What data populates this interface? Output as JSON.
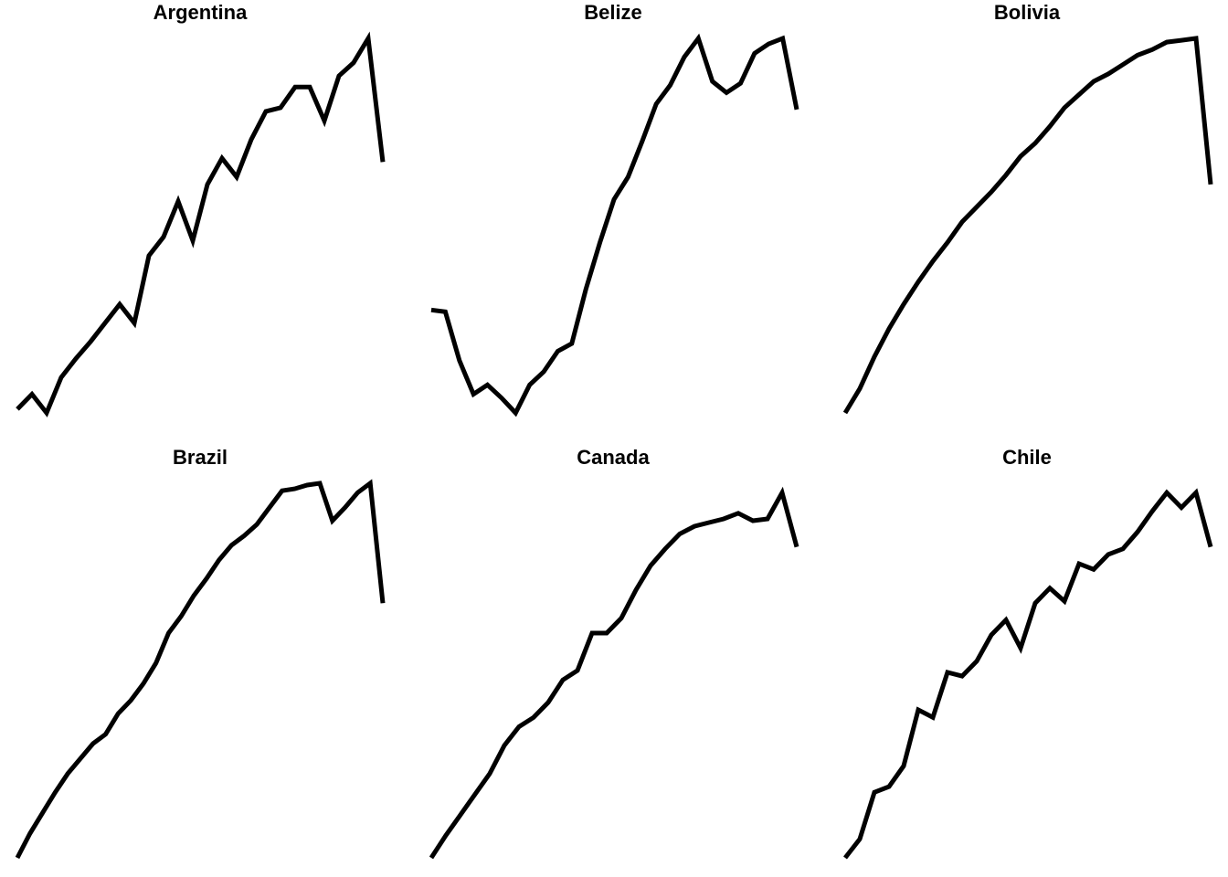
{
  "chart_data": {
    "type": "line",
    "layout": "small-multiples",
    "grid": false,
    "axes": false,
    "line_color": "#000000",
    "panels": [
      {
        "title": "Argentina",
        "values": [
          0.01,
          0.05,
          0.0,
          0.095,
          0.145,
          0.19,
          0.24,
          0.29,
          0.24,
          0.42,
          0.47,
          0.565,
          0.46,
          0.61,
          0.68,
          0.63,
          0.73,
          0.805,
          0.815,
          0.87,
          0.87,
          0.78,
          0.9,
          0.935,
          1.0,
          0.67
        ]
      },
      {
        "title": "Belize",
        "values": [
          0.275,
          0.27,
          0.14,
          0.05,
          0.075,
          0.04,
          0.0,
          0.075,
          0.11,
          0.165,
          0.185,
          0.33,
          0.455,
          0.57,
          0.63,
          0.725,
          0.825,
          0.875,
          0.95,
          1.0,
          0.885,
          0.855,
          0.88,
          0.96,
          0.985,
          1.0,
          0.81
        ]
      },
      {
        "title": "Bolivia",
        "values": [
          0.0,
          0.065,
          0.15,
          0.225,
          0.29,
          0.35,
          0.405,
          0.455,
          0.51,
          0.55,
          0.59,
          0.635,
          0.685,
          0.72,
          0.765,
          0.815,
          0.85,
          0.885,
          0.905,
          0.93,
          0.955,
          0.97,
          0.99,
          0.995,
          1.0,
          0.61
        ]
      },
      {
        "title": "Brazil",
        "values": [
          0.0,
          0.065,
          0.12,
          0.175,
          0.225,
          0.265,
          0.305,
          0.33,
          0.385,
          0.42,
          0.465,
          0.52,
          0.6,
          0.645,
          0.7,
          0.745,
          0.795,
          0.835,
          0.86,
          0.89,
          0.935,
          0.98,
          0.985,
          0.995,
          1.0,
          0.9,
          0.935,
          0.975,
          1.0,
          0.68
        ]
      },
      {
        "title": "Canada",
        "values": [
          0.0,
          0.06,
          0.115,
          0.17,
          0.225,
          0.3,
          0.35,
          0.375,
          0.415,
          0.475,
          0.5,
          0.6,
          0.6,
          0.64,
          0.715,
          0.78,
          0.825,
          0.865,
          0.885,
          0.895,
          0.905,
          0.92,
          0.9,
          0.905,
          0.975,
          0.83
        ]
      },
      {
        "title": "Chile",
        "values": [
          0.0,
          0.05,
          0.175,
          0.19,
          0.245,
          0.395,
          0.375,
          0.495,
          0.485,
          0.525,
          0.595,
          0.635,
          0.56,
          0.68,
          0.72,
          0.685,
          0.785,
          0.77,
          0.81,
          0.825,
          0.87,
          0.925,
          0.975,
          0.935,
          0.975,
          0.83
        ]
      }
    ]
  }
}
